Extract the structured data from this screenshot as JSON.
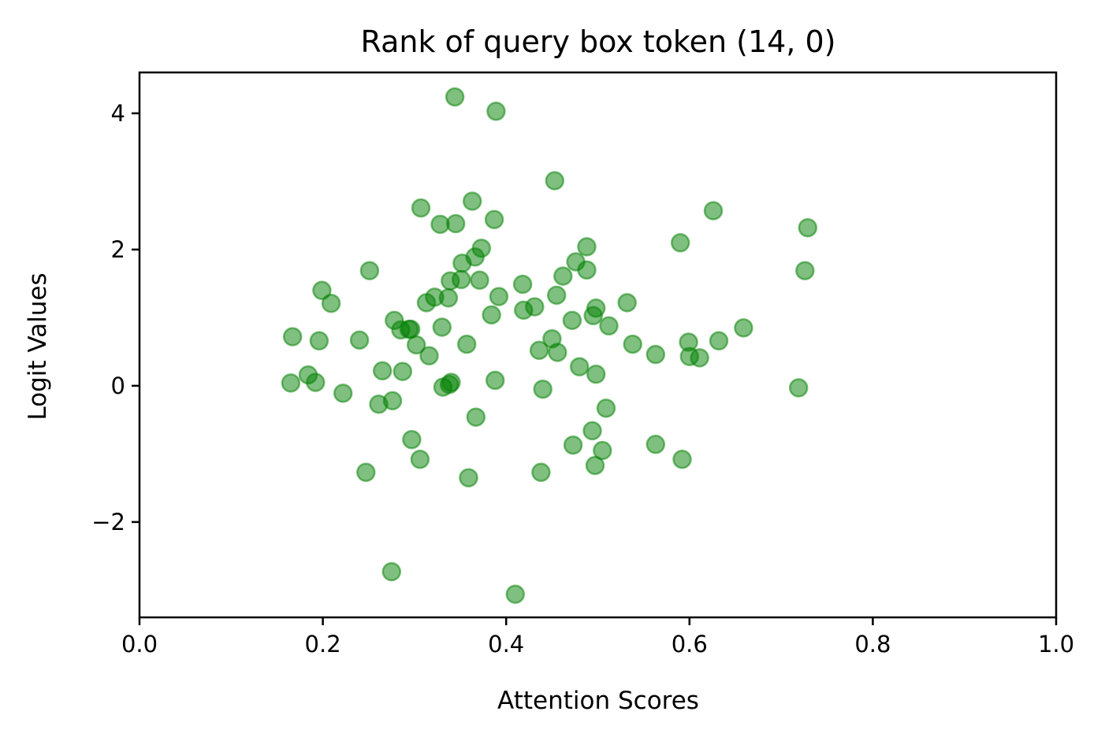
{
  "chart_data": {
    "type": "scatter",
    "title": "Rank of query box token (14, 0)",
    "xlabel": "Attention Scores",
    "ylabel": "Logit Values",
    "xlim": [
      0.0,
      1.0
    ],
    "ylim": [
      -3.4,
      4.6
    ],
    "xticks": [
      0.0,
      0.2,
      0.4,
      0.6,
      0.8,
      1.0
    ],
    "xtick_labels": [
      "0.0",
      "0.2",
      "0.4",
      "0.6",
      "0.8",
      "1.0"
    ],
    "yticks": [
      -2,
      0,
      2,
      4
    ],
    "ytick_labels": [
      "−2",
      "0",
      "2",
      "4"
    ],
    "grid": false,
    "marker_color": "#008000",
    "marker_alpha": 0.5,
    "points": [
      {
        "x": 0.165,
        "y": 0.04
      },
      {
        "x": 0.167,
        "y": 0.72
      },
      {
        "x": 0.184,
        "y": 0.16
      },
      {
        "x": 0.192,
        "y": 0.05
      },
      {
        "x": 0.196,
        "y": 0.66
      },
      {
        "x": 0.199,
        "y": 1.4
      },
      {
        "x": 0.209,
        "y": 1.21
      },
      {
        "x": 0.222,
        "y": -0.11
      },
      {
        "x": 0.24,
        "y": 0.67
      },
      {
        "x": 0.247,
        "y": -1.27
      },
      {
        "x": 0.251,
        "y": 1.69
      },
      {
        "x": 0.261,
        "y": -0.27
      },
      {
        "x": 0.265,
        "y": 0.22
      },
      {
        "x": 0.275,
        "y": -2.73
      },
      {
        "x": 0.276,
        "y": -0.22
      },
      {
        "x": 0.278,
        "y": 0.96
      },
      {
        "x": 0.285,
        "y": 0.82
      },
      {
        "x": 0.287,
        "y": 0.21
      },
      {
        "x": 0.294,
        "y": 0.83
      },
      {
        "x": 0.296,
        "y": 0.83
      },
      {
        "x": 0.297,
        "y": -0.79
      },
      {
        "x": 0.302,
        "y": 0.6
      },
      {
        "x": 0.306,
        "y": -1.08
      },
      {
        "x": 0.307,
        "y": 2.61
      },
      {
        "x": 0.313,
        "y": 1.22
      },
      {
        "x": 0.316,
        "y": 0.44
      },
      {
        "x": 0.322,
        "y": 1.3
      },
      {
        "x": 0.328,
        "y": 2.37
      },
      {
        "x": 0.33,
        "y": 0.86
      },
      {
        "x": 0.331,
        "y": -0.02
      },
      {
        "x": 0.337,
        "y": 1.29
      },
      {
        "x": 0.338,
        "y": 0.02
      },
      {
        "x": 0.339,
        "y": 1.54
      },
      {
        "x": 0.34,
        "y": 0.05
      },
      {
        "x": 0.344,
        "y": 4.24
      },
      {
        "x": 0.345,
        "y": 2.38
      },
      {
        "x": 0.351,
        "y": 1.56
      },
      {
        "x": 0.352,
        "y": 1.8
      },
      {
        "x": 0.357,
        "y": 0.61
      },
      {
        "x": 0.359,
        "y": -1.35
      },
      {
        "x": 0.363,
        "y": 2.71
      },
      {
        "x": 0.366,
        "y": 1.89
      },
      {
        "x": 0.367,
        "y": -0.46
      },
      {
        "x": 0.371,
        "y": 1.55
      },
      {
        "x": 0.373,
        "y": 2.02
      },
      {
        "x": 0.384,
        "y": 1.04
      },
      {
        "x": 0.387,
        "y": 2.44
      },
      {
        "x": 0.388,
        "y": 0.08
      },
      {
        "x": 0.389,
        "y": 4.03
      },
      {
        "x": 0.392,
        "y": 1.31
      },
      {
        "x": 0.41,
        "y": -3.06
      },
      {
        "x": 0.418,
        "y": 1.49
      },
      {
        "x": 0.419,
        "y": 1.11
      },
      {
        "x": 0.431,
        "y": 1.16
      },
      {
        "x": 0.436,
        "y": 0.52
      },
      {
        "x": 0.438,
        "y": -1.27
      },
      {
        "x": 0.44,
        "y": -0.05
      },
      {
        "x": 0.45,
        "y": 0.69
      },
      {
        "x": 0.453,
        "y": 3.01
      },
      {
        "x": 0.455,
        "y": 1.33
      },
      {
        "x": 0.456,
        "y": 0.49
      },
      {
        "x": 0.462,
        "y": 1.61
      },
      {
        "x": 0.472,
        "y": 0.96
      },
      {
        "x": 0.473,
        "y": -0.87
      },
      {
        "x": 0.476,
        "y": 1.82
      },
      {
        "x": 0.48,
        "y": 0.28
      },
      {
        "x": 0.488,
        "y": 2.04
      },
      {
        "x": 0.488,
        "y": 1.7
      },
      {
        "x": 0.494,
        "y": -0.66
      },
      {
        "x": 0.495,
        "y": 1.03
      },
      {
        "x": 0.497,
        "y": -1.17
      },
      {
        "x": 0.498,
        "y": 0.17
      },
      {
        "x": 0.498,
        "y": 1.14
      },
      {
        "x": 0.505,
        "y": -0.95
      },
      {
        "x": 0.509,
        "y": -0.33
      },
      {
        "x": 0.512,
        "y": 0.88
      },
      {
        "x": 0.532,
        "y": 1.22
      },
      {
        "x": 0.538,
        "y": 0.61
      },
      {
        "x": 0.563,
        "y": -0.86
      },
      {
        "x": 0.563,
        "y": 0.46
      },
      {
        "x": 0.59,
        "y": 2.1
      },
      {
        "x": 0.592,
        "y": -1.08
      },
      {
        "x": 0.599,
        "y": 0.64
      },
      {
        "x": 0.6,
        "y": 0.43
      },
      {
        "x": 0.611,
        "y": 0.41
      },
      {
        "x": 0.626,
        "y": 2.57
      },
      {
        "x": 0.632,
        "y": 0.66
      },
      {
        "x": 0.659,
        "y": 0.85
      },
      {
        "x": 0.719,
        "y": -0.03
      },
      {
        "x": 0.726,
        "y": 1.69
      },
      {
        "x": 0.729,
        "y": 2.32
      }
    ]
  }
}
